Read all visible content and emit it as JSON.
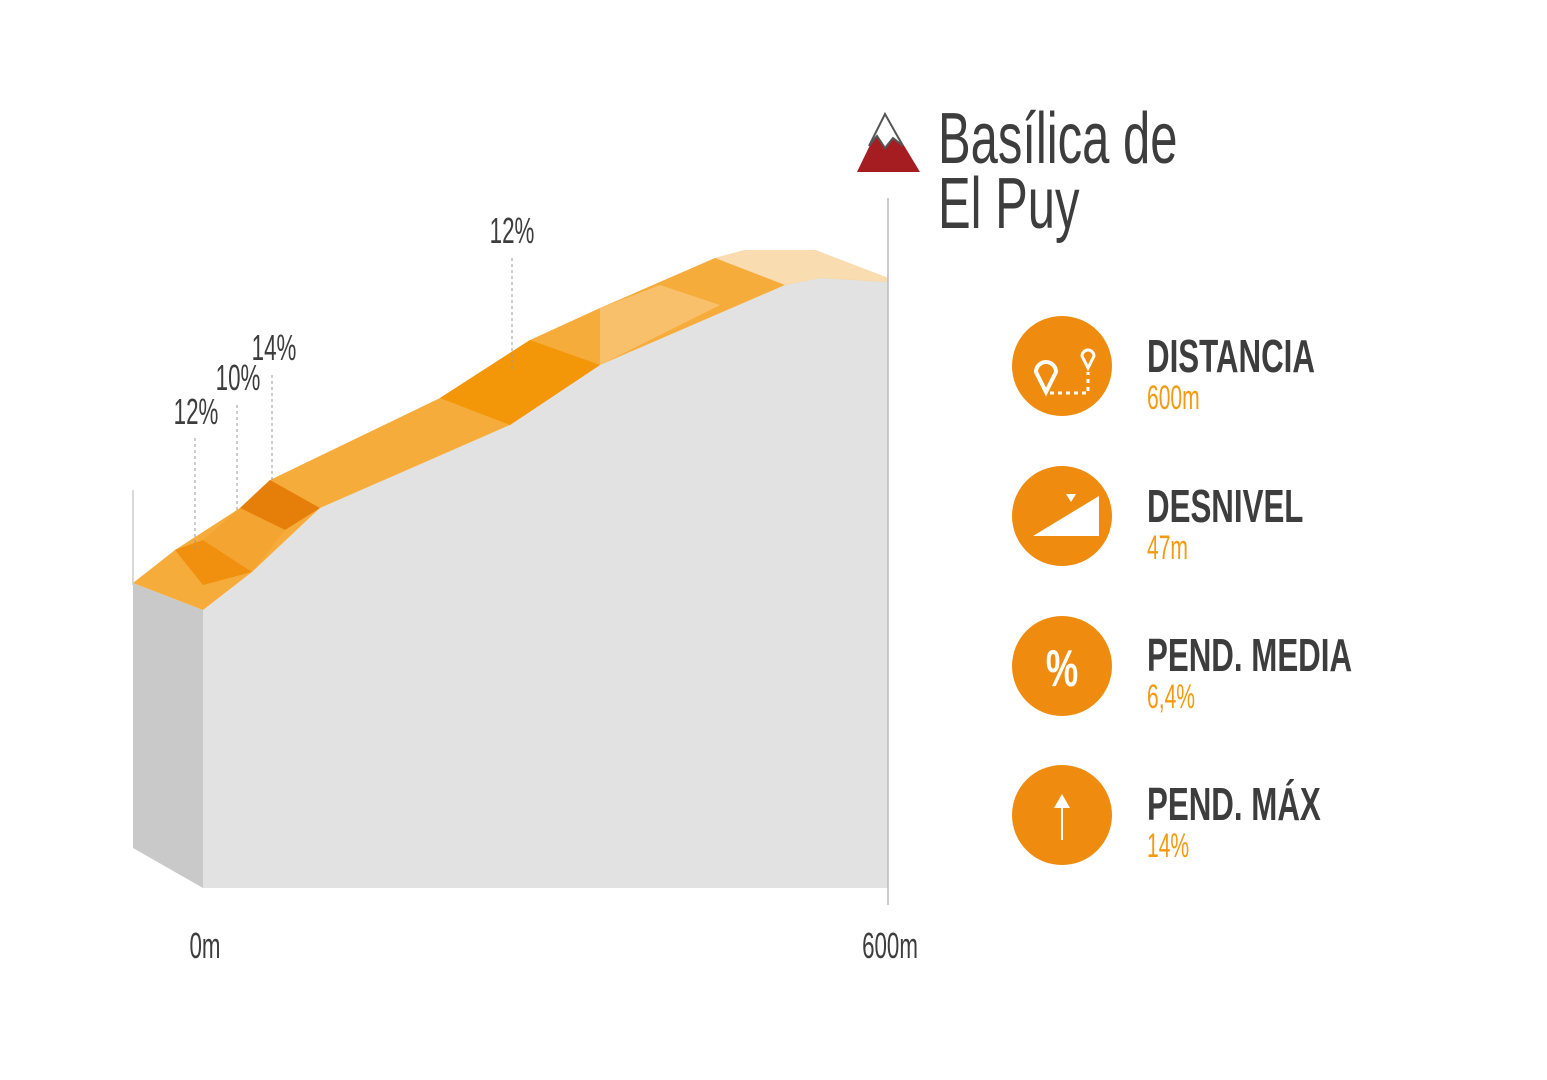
{
  "header": {
    "title_lines": [
      "Basílica de",
      "El Puy"
    ]
  },
  "profile": {
    "annotations": [
      "12%",
      "10%",
      "14%",
      "12%"
    ],
    "axis_labels": [
      "0m",
      "600m"
    ]
  },
  "stats": [
    {
      "label": "DISTANCIA",
      "value": "600m"
    },
    {
      "label": "DESNIVEL",
      "value": "47m"
    },
    {
      "label": "PEND. MEDIA",
      "value": "6,4%"
    },
    {
      "label": "PEND. MÁX",
      "value": "14%"
    }
  ]
}
